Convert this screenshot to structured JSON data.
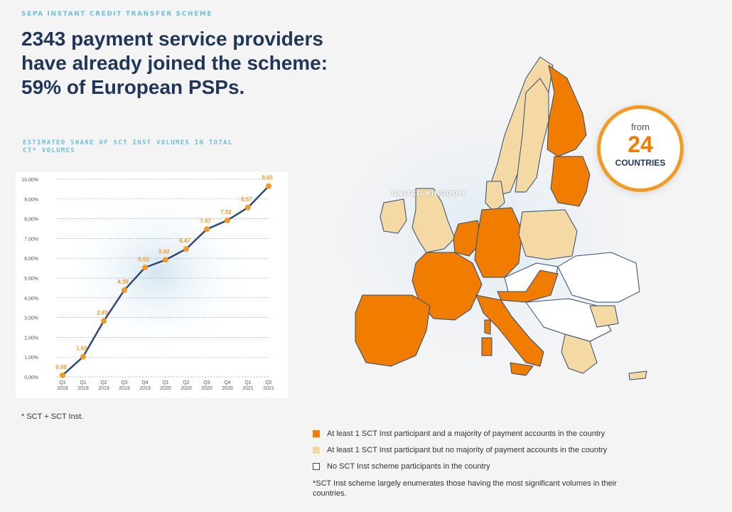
{
  "header": {
    "kicker": "SEPA INSTANT CREDIT TRANSFER SCHEME",
    "headline": "2343 payment service providers have already joined the scheme: 59% of European PSPs."
  },
  "chart_label": "ESTIMATED SHARE OF SCT INST VOLUMES IN TOTAL CT* VOLUMES",
  "chart_data": {
    "type": "line",
    "categories": [
      [
        "Q1",
        "2018"
      ],
      [
        "Q1",
        "2019"
      ],
      [
        "Q2",
        "2019"
      ],
      [
        "Q3",
        "2019"
      ],
      [
        "Q4",
        "2019"
      ],
      [
        "Q1",
        "2020"
      ],
      [
        "Q2",
        "2020"
      ],
      [
        "Q3",
        "2020"
      ],
      [
        "Q4",
        "2020"
      ],
      [
        "Q1",
        "2021"
      ],
      [
        "Q2",
        "2021"
      ]
    ],
    "values": [
      0.08,
      1.02,
      2.83,
      4.39,
      5.53,
      5.92,
      6.47,
      7.47,
      7.92,
      8.57,
      9.65
    ],
    "data_labels": [
      "0.08",
      "1.02",
      "2.83",
      "4.39",
      "5.53",
      "5.92",
      "6.47",
      "7.47",
      "7.92",
      "8.57",
      "9.65"
    ],
    "yticks": [
      "0,00%",
      "1,00%",
      "2,00%",
      "3,00%",
      "4,00%",
      "5,00%",
      "6,00%",
      "7,00%",
      "8,00%",
      "9,00%",
      "10,00%"
    ],
    "ylim": [
      0,
      10
    ],
    "grid": true,
    "line_color": "#2f4a72",
    "marker_color": "#f39a23",
    "label_color": "#f39a23"
  },
  "footnote": "* SCT + SCT Inst.",
  "badge": {
    "from": "from",
    "number": "24",
    "unit": "COUNTRIES"
  },
  "map_label": "UNITED KINGDOM",
  "legend": [
    {
      "label": "At least 1 SCT Inst participant and a majority of payment accounts in the country",
      "color": "#f07d00"
    },
    {
      "label": "At least 1 SCT Inst participant but no majority of payment accounts in the country",
      "color": "#f4d9a4"
    },
    {
      "label": "No SCT Inst scheme participants in the country",
      "color": "#ffffff"
    }
  ],
  "legend_note": "*SCT Inst scheme largely enumerates those having the most significant volumes in their countries.",
  "colors": {
    "majority": "#f07d00",
    "minority": "#f4d9a4",
    "none": "#ffffff",
    "border": "#2f4a72"
  }
}
